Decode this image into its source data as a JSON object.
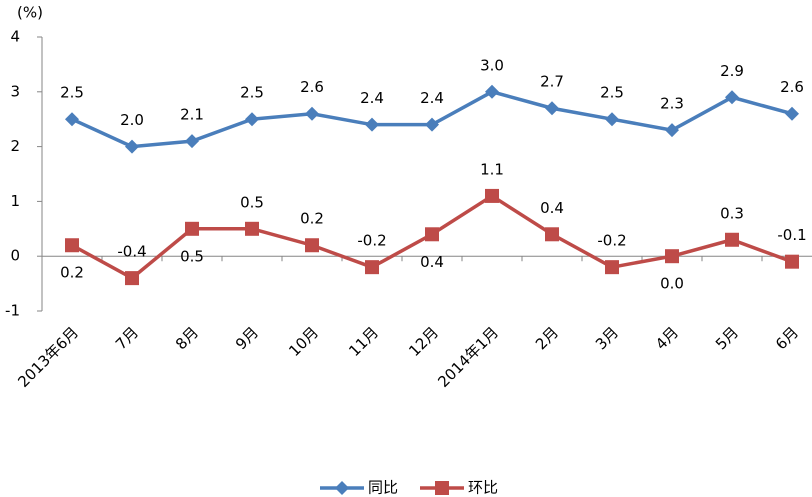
{
  "chart_data": {
    "type": "line",
    "y_label": "(%)",
    "categories": [
      "2013年6月",
      "7月",
      "8月",
      "9月",
      "10月",
      "11月",
      "12月",
      "2014年1月",
      "2月",
      "3月",
      "4月",
      "5月",
      "6月"
    ],
    "series": [
      {
        "name": "同比",
        "color": "#4a7ebb",
        "marker": "diamond",
        "values": [
          2.5,
          2.0,
          2.1,
          2.5,
          2.6,
          2.4,
          2.4,
          3.0,
          2.7,
          2.5,
          2.3,
          2.9,
          2.6
        ],
        "value_labels": [
          "2.5",
          "2.0",
          "2.1",
          "2.5",
          "2.6",
          "2.4",
          "2.4",
          "3.0",
          "2.7",
          "2.5",
          "2.3",
          "2.9",
          "2.6"
        ]
      },
      {
        "name": "环比",
        "color": "#be4b48",
        "marker": "square",
        "values": [
          0.2,
          -0.4,
          0.5,
          0.5,
          0.2,
          -0.2,
          0.4,
          1.1,
          0.4,
          -0.2,
          0.0,
          0.3,
          -0.1
        ],
        "value_labels": [
          "0.2",
          "-0.4",
          "0.5",
          "0.5",
          "0.2",
          "-0.2",
          "0.4",
          "1.1",
          "0.4",
          "-0.2",
          "0.0",
          "0.3",
          "-0.1"
        ]
      }
    ],
    "ylim": [
      -1,
      4
    ],
    "yticks": [
      -1,
      0,
      1,
      2,
      3,
      4
    ],
    "grid": false,
    "legend": "bottom"
  }
}
